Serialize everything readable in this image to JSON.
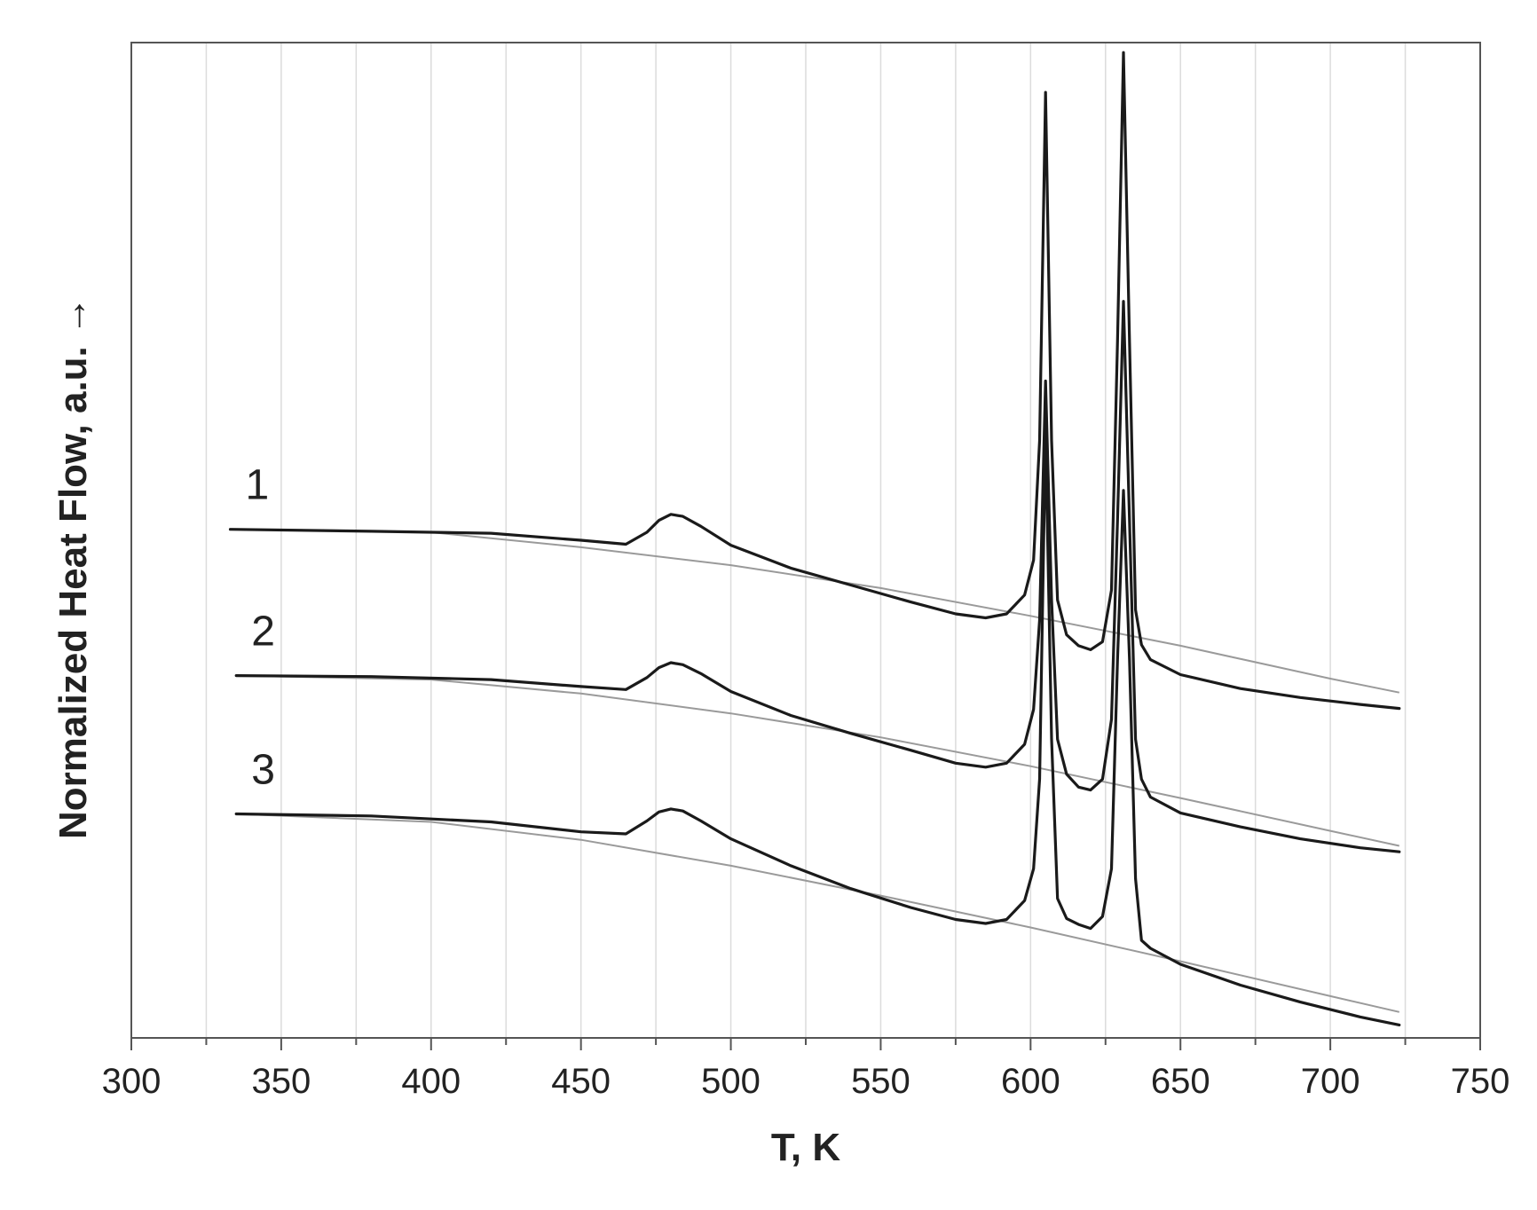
{
  "chart_data": {
    "type": "line",
    "title": "",
    "xlabel": "T, K",
    "ylabel": "Normalized Heat Flow, a.u. →",
    "xlim": [
      300,
      750
    ],
    "ylim": [
      0,
      100
    ],
    "grid": true,
    "x_ticks": [
      300,
      350,
      400,
      450,
      500,
      550,
      600,
      650,
      700,
      750
    ],
    "x_tick_labels": [
      "300",
      "350",
      "400",
      "450",
      "500",
      "550",
      "600",
      "650",
      "700",
      "750"
    ],
    "y_ticks_shown": false,
    "colors": {
      "curve": "#1a1a1a",
      "baseline": "#9a9a9a",
      "grid": "#dcdcdc",
      "axis": "#555555"
    },
    "series": [
      {
        "label": "1",
        "x": [
          333,
          380,
          420,
          450,
          465,
          472,
          476,
          480,
          484,
          490,
          500,
          520,
          540,
          560,
          575,
          585,
          592,
          598,
          601,
          603,
          605,
          607,
          609,
          612,
          616,
          620,
          624,
          627,
          629,
          631,
          633,
          635,
          637,
          640,
          650,
          670,
          690,
          710,
          723
        ],
        "y": [
          51.1,
          50.9,
          50.7,
          50.0,
          49.6,
          50.8,
          52.0,
          52.6,
          52.4,
          51.4,
          49.5,
          47.2,
          45.5,
          43.8,
          42.6,
          42.2,
          42.6,
          44.5,
          48.0,
          60.0,
          95.0,
          60.0,
          44.0,
          40.5,
          39.4,
          39.0,
          39.8,
          45.0,
          70.0,
          99.0,
          70.0,
          43.0,
          39.5,
          38.0,
          36.5,
          35.1,
          34.2,
          33.5,
          33.1
        ],
        "baseline_x": [
          333,
          400,
          450,
          500,
          550,
          600,
          650,
          700,
          723
        ],
        "baseline_y": [
          51.1,
          50.8,
          49.3,
          47.5,
          45.2,
          42.4,
          39.4,
          36.1,
          34.7
        ]
      },
      {
        "label": "2",
        "x": [
          335,
          380,
          420,
          450,
          465,
          472,
          476,
          480,
          484,
          490,
          500,
          520,
          540,
          560,
          575,
          585,
          592,
          598,
          601,
          603,
          605,
          607,
          609,
          612,
          616,
          620,
          624,
          627,
          629,
          631,
          633,
          635,
          637,
          640,
          650,
          670,
          690,
          710,
          723
        ],
        "y": [
          36.4,
          36.3,
          36.0,
          35.3,
          35.0,
          36.2,
          37.2,
          37.7,
          37.5,
          36.6,
          34.8,
          32.4,
          30.6,
          28.9,
          27.6,
          27.2,
          27.6,
          29.5,
          33.0,
          42.0,
          66.0,
          44.0,
          30.0,
          26.5,
          25.2,
          24.9,
          26.0,
          32.0,
          52.0,
          74.0,
          52.0,
          30.0,
          26.0,
          24.2,
          22.6,
          21.2,
          20.0,
          19.1,
          18.7
        ],
        "baseline_x": [
          335,
          400,
          450,
          500,
          550,
          600,
          650,
          700,
          723
        ],
        "baseline_y": [
          36.4,
          36.0,
          34.6,
          32.6,
          30.2,
          27.3,
          24.1,
          20.8,
          19.3
        ]
      },
      {
        "label": "3",
        "x": [
          335,
          380,
          420,
          450,
          465,
          472,
          476,
          480,
          484,
          490,
          500,
          520,
          540,
          560,
          575,
          585,
          592,
          598,
          601,
          603,
          605,
          607,
          609,
          612,
          616,
          620,
          624,
          627,
          629,
          631,
          633,
          635,
          637,
          640,
          650,
          670,
          690,
          710,
          723
        ],
        "y": [
          22.5,
          22.3,
          21.7,
          20.7,
          20.5,
          21.8,
          22.7,
          23.0,
          22.8,
          21.8,
          20.0,
          17.3,
          15.0,
          13.1,
          11.9,
          11.5,
          11.9,
          13.8,
          17.0,
          26.0,
          61.0,
          30.0,
          14.0,
          12.0,
          11.4,
          11.0,
          12.2,
          17.0,
          38.0,
          55.0,
          38.0,
          16.0,
          9.8,
          9.0,
          7.4,
          5.3,
          3.6,
          2.1,
          1.3
        ],
        "baseline_x": [
          335,
          400,
          450,
          500,
          550,
          600,
          650,
          700,
          723
        ],
        "baseline_y": [
          22.5,
          21.7,
          19.9,
          17.3,
          14.3,
          11.1,
          7.7,
          4.2,
          2.6
        ]
      }
    ]
  }
}
